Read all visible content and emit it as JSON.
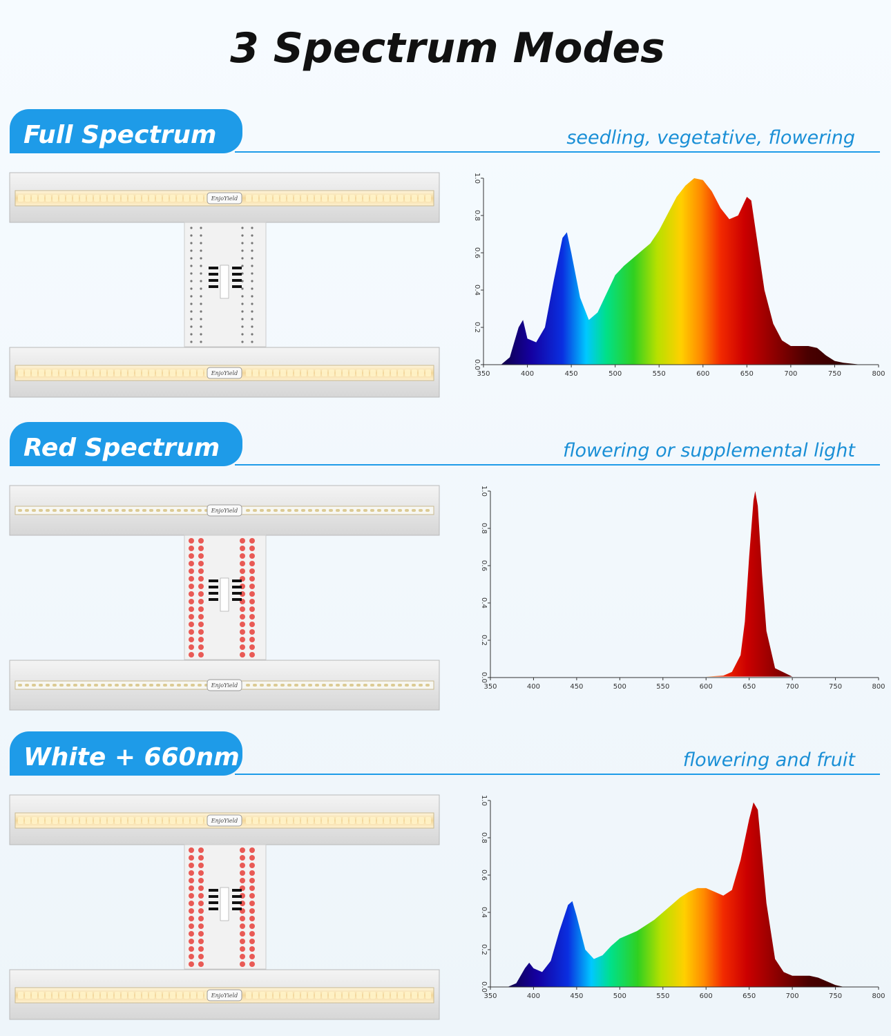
{
  "title": "3 Spectrum Modes",
  "brand": "EnjoYield",
  "sections": [
    {
      "label": "Full Spectrum",
      "caption": "seedling, vegetative, flowering"
    },
    {
      "label": "Red Spectrum",
      "caption": "flowering or supplemental light"
    },
    {
      "label": "White + 660nm",
      "caption": "flowering and fruit"
    }
  ],
  "chart_data": [
    {
      "type": "area",
      "x": [
        360,
        370,
        380,
        390,
        395,
        400,
        410,
        420,
        430,
        440,
        445,
        450,
        460,
        470,
        480,
        490,
        500,
        510,
        520,
        530,
        540,
        550,
        560,
        570,
        580,
        590,
        600,
        610,
        620,
        630,
        640,
        650,
        655,
        660,
        670,
        680,
        690,
        700,
        710,
        720,
        730,
        740,
        750,
        760,
        780
      ],
      "values": [
        0,
        0,
        0.04,
        0.2,
        0.24,
        0.14,
        0.12,
        0.2,
        0.45,
        0.68,
        0.71,
        0.6,
        0.36,
        0.24,
        0.28,
        0.38,
        0.48,
        0.53,
        0.57,
        0.61,
        0.65,
        0.72,
        0.81,
        0.9,
        0.96,
        1.0,
        0.99,
        0.93,
        0.84,
        0.78,
        0.8,
        0.9,
        0.88,
        0.72,
        0.4,
        0.22,
        0.13,
        0.1,
        0.1,
        0.1,
        0.09,
        0.05,
        0.02,
        0.01,
        0
      ],
      "xlim": [
        350,
        800
      ],
      "ylim": [
        0,
        1
      ],
      "xticks": [
        350,
        400,
        450,
        500,
        550,
        600,
        650,
        700,
        750,
        800
      ],
      "yticks": [
        {
          "value": 0,
          "label": "0.0"
        },
        0.2,
        0.4,
        0.6,
        0.8,
        {
          "value": 1,
          "label": "1.0"
        }
      ]
    },
    {
      "type": "area",
      "x": [
        500,
        600,
        620,
        630,
        640,
        645,
        650,
        655,
        657,
        660,
        665,
        670,
        680,
        700,
        760
      ],
      "values": [
        0.005,
        0.005,
        0.01,
        0.03,
        0.12,
        0.3,
        0.65,
        0.95,
        1.0,
        0.92,
        0.55,
        0.25,
        0.05,
        0.005,
        0.005
      ],
      "xlim": [
        350,
        800
      ],
      "ylim": [
        0,
        1
      ],
      "xticks": [
        350,
        400,
        450,
        500,
        550,
        600,
        650,
        700,
        750,
        800
      ],
      "yticks": [
        {
          "value": 0,
          "label": "0.0"
        },
        0.2,
        0.4,
        0.6,
        0.8,
        {
          "value": 1,
          "label": "1.0"
        }
      ]
    },
    {
      "type": "area",
      "x": [
        370,
        380,
        390,
        395,
        400,
        410,
        420,
        430,
        440,
        445,
        450,
        460,
        470,
        480,
        490,
        500,
        510,
        520,
        530,
        540,
        550,
        560,
        570,
        580,
        590,
        600,
        610,
        620,
        630,
        640,
        650,
        655,
        660,
        665,
        670,
        680,
        690,
        700,
        710,
        720,
        730,
        740,
        750,
        760
      ],
      "values": [
        0,
        0.02,
        0.1,
        0.13,
        0.1,
        0.08,
        0.14,
        0.3,
        0.44,
        0.46,
        0.38,
        0.2,
        0.15,
        0.17,
        0.22,
        0.26,
        0.28,
        0.3,
        0.33,
        0.36,
        0.4,
        0.44,
        0.48,
        0.51,
        0.53,
        0.53,
        0.51,
        0.49,
        0.52,
        0.68,
        0.9,
        0.99,
        0.95,
        0.7,
        0.45,
        0.15,
        0.08,
        0.06,
        0.06,
        0.06,
        0.05,
        0.03,
        0.01,
        0
      ],
      "xlim": [
        350,
        800
      ],
      "ylim": [
        0,
        1
      ],
      "xticks": [
        350,
        400,
        450,
        500,
        550,
        600,
        650,
        700,
        750,
        800
      ],
      "yticks": [
        {
          "value": 0,
          "label": "0.0"
        },
        0.2,
        0.4,
        0.6,
        0.8,
        {
          "value": 1,
          "label": "1.0"
        }
      ]
    }
  ]
}
